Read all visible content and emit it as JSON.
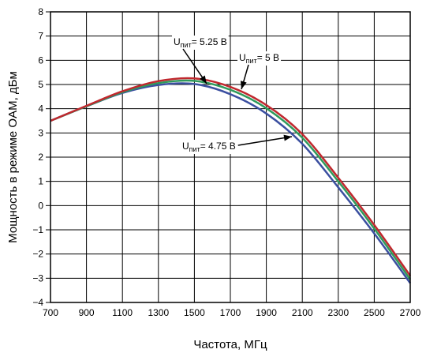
{
  "chart_data": {
    "type": "line",
    "title": "",
    "xlabel": "Частота, МГц",
    "ylabel": "Мощность в режиме OAM, дБм",
    "xlim": [
      700,
      2700
    ],
    "ylim": [
      -4,
      8
    ],
    "grid": true,
    "x_ticks": [
      "700",
      "900",
      "1100",
      "1300",
      "1500",
      "1700",
      "1900",
      "2100",
      "2300",
      "2500",
      "2700"
    ],
    "y_ticks": [
      "−4",
      "−3",
      "−2",
      "−1",
      "0",
      "1",
      "2",
      "3",
      "4",
      "5",
      "6",
      "7",
      "8"
    ],
    "x": [
      700,
      900,
      1100,
      1300,
      1500,
      1700,
      1900,
      2100,
      2300,
      2500,
      2700
    ],
    "series": [
      {
        "color": "#3b4fa0",
        "values": [
          3.5,
          4.1,
          4.65,
          4.98,
          5.02,
          4.6,
          3.8,
          2.55,
          0.75,
          -1.15,
          -3.2
        ]
      },
      {
        "color": "#2f9a5c",
        "values": [
          3.5,
          4.1,
          4.68,
          5.06,
          5.15,
          4.78,
          4.02,
          2.8,
          1.0,
          -0.95,
          -3.05
        ]
      },
      {
        "color": "#c0282e",
        "values": [
          3.5,
          4.12,
          4.72,
          5.14,
          5.25,
          4.9,
          4.15,
          2.95,
          1.15,
          -0.8,
          -2.9
        ]
      }
    ],
    "annotations": [
      {
        "main": "U",
        "sub": "пит",
        "value": "= 5.25 В",
        "x": 1500,
        "y": 5.2
      },
      {
        "main": "U",
        "sub": "пит",
        "value": "= 5 В",
        "x": 1700,
        "y": 4.8
      },
      {
        "main": "U",
        "sub": "пит",
        "value": "= 4.75 В",
        "x": 2030,
        "y": 3.0
      }
    ]
  }
}
